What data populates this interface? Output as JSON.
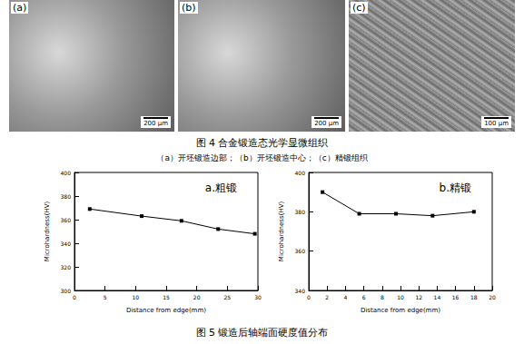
{
  "figure4": {
    "panels": [
      {
        "label": "(a)",
        "scale_bar": "200 μm"
      },
      {
        "label": "(b)",
        "scale_bar": "200 μm"
      },
      {
        "label": "(c)",
        "scale_bar": "100 μm"
      }
    ],
    "caption": "图 4 合金锻造态光学显微组织",
    "subcaption": "（a）开坯锻造边部；（b）开坯锻造中心；（c）精锻组织"
  },
  "chart_data": [
    {
      "type": "line",
      "title": "a.粗锻",
      "x_label": "Distance from edge(mm)",
      "y_label": "Microhardness(HV)",
      "x": [
        2.5,
        11,
        17.5,
        23.5,
        29.5
      ],
      "values": [
        369,
        363,
        359,
        352,
        348
      ],
      "color": "#000000",
      "marker": "square",
      "xlim": [
        0,
        30
      ],
      "xticks": [
        0,
        5,
        10,
        15,
        20,
        25,
        30
      ],
      "ylim": [
        300,
        400
      ],
      "yticks": [
        300,
        320,
        340,
        360,
        380,
        400
      ],
      "grid": false
    },
    {
      "type": "line",
      "title": "b.精锻",
      "x_label": "Distance from edge(mm)",
      "y_label": "Microhardness(HV)",
      "x": [
        1.5,
        5.5,
        9.5,
        13.5,
        18
      ],
      "values": [
        390,
        379,
        379,
        378,
        380
      ],
      "color": "#000000",
      "marker": "square",
      "xlim": [
        0,
        20
      ],
      "xticks": [
        0,
        2,
        4,
        6,
        8,
        10,
        12,
        14,
        16,
        18,
        20
      ],
      "ylim": [
        340,
        400
      ],
      "yticks": [
        340,
        360,
        380,
        400
      ],
      "grid": false
    }
  ],
  "figure5_caption": "图 5 锻造后轴端面硬度值分布"
}
